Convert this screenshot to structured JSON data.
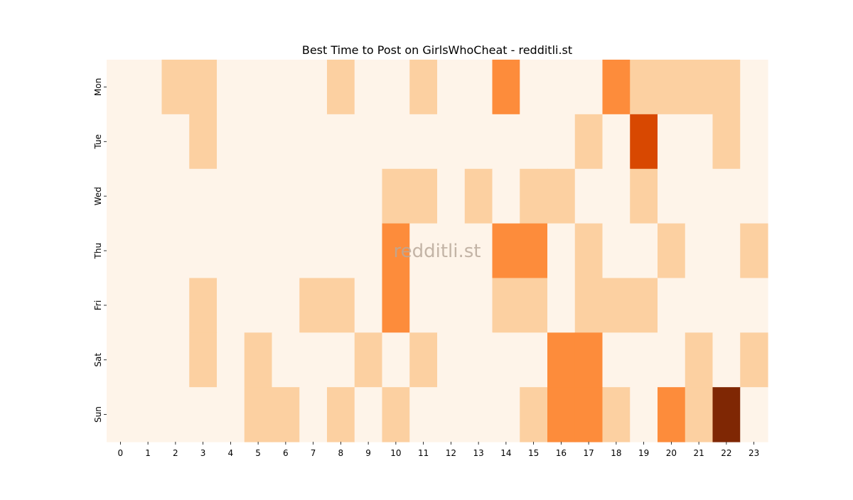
{
  "chart_data": {
    "type": "heatmap",
    "title": "Best Time to Post on GirlsWhoCheat - redditli.st",
    "watermark": "redditli.st",
    "xlabel": "",
    "ylabel": "",
    "x_categories": [
      "0",
      "1",
      "2",
      "3",
      "4",
      "5",
      "6",
      "7",
      "8",
      "9",
      "10",
      "11",
      "12",
      "13",
      "14",
      "15",
      "16",
      "17",
      "18",
      "19",
      "20",
      "21",
      "22",
      "23"
    ],
    "y_categories": [
      "Mon",
      "Tue",
      "Wed",
      "Thu",
      "Fri",
      "Sat",
      "Sun"
    ],
    "colormap": "Oranges",
    "colorbar": false,
    "grid": false,
    "levels": {
      "0": "#fef4e9",
      "1": "#fcd0a1",
      "2": "#fd8c3b",
      "3": "#d84801",
      "4": "#7f2704"
    },
    "values": [
      [
        0,
        0,
        1,
        1,
        0,
        0,
        0,
        0,
        1,
        0,
        0,
        1,
        0,
        0,
        2,
        0,
        0,
        0,
        2,
        1,
        1,
        1,
        1,
        0
      ],
      [
        0,
        0,
        0,
        1,
        0,
        0,
        0,
        0,
        0,
        0,
        0,
        0,
        0,
        0,
        0,
        0,
        0,
        1,
        0,
        3,
        0,
        0,
        1,
        0
      ],
      [
        0,
        0,
        0,
        0,
        0,
        0,
        0,
        0,
        0,
        0,
        1,
        1,
        0,
        1,
        0,
        1,
        1,
        0,
        0,
        1,
        0,
        0,
        0,
        0
      ],
      [
        0,
        0,
        0,
        0,
        0,
        0,
        0,
        0,
        0,
        0,
        2,
        0,
        0,
        0,
        2,
        2,
        0,
        1,
        0,
        0,
        1,
        0,
        0,
        1
      ],
      [
        0,
        0,
        0,
        1,
        0,
        0,
        0,
        1,
        1,
        0,
        2,
        0,
        0,
        0,
        1,
        1,
        0,
        1,
        1,
        1,
        0,
        0,
        0,
        0
      ],
      [
        0,
        0,
        0,
        1,
        0,
        1,
        0,
        0,
        0,
        1,
        0,
        1,
        0,
        0,
        0,
        0,
        2,
        2,
        0,
        0,
        0,
        1,
        0,
        1
      ],
      [
        0,
        0,
        0,
        0,
        0,
        1,
        1,
        0,
        1,
        0,
        1,
        0,
        0,
        0,
        0,
        1,
        2,
        2,
        1,
        0,
        2,
        1,
        4,
        0
      ]
    ]
  }
}
